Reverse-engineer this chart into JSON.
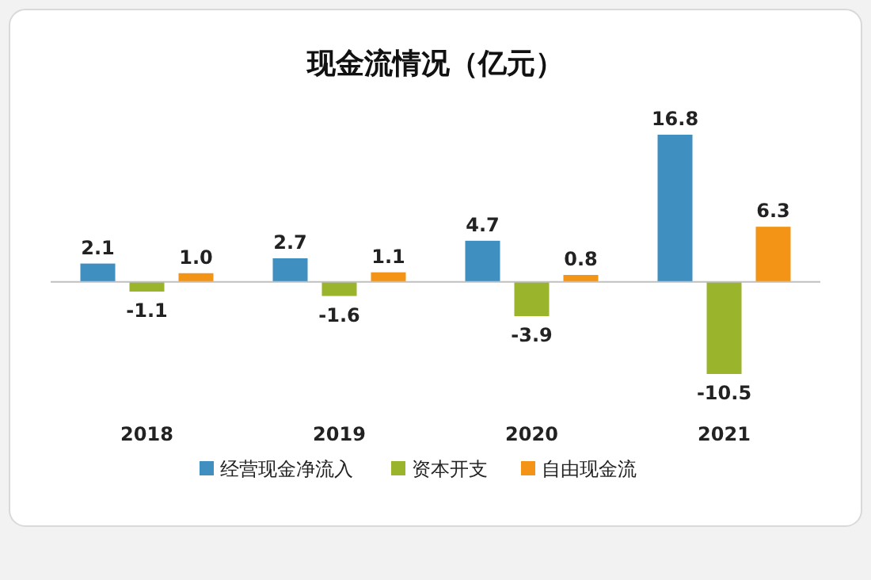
{
  "chart_data": {
    "type": "bar",
    "title": "现金流情况（亿元）",
    "categories": [
      "2018",
      "2019",
      "2020",
      "2021"
    ],
    "series": [
      {
        "name": "经营现金净流入",
        "color": "#3f8fc0",
        "values": [
          2.1,
          2.7,
          4.7,
          16.8
        ],
        "value_labels": [
          "2.1",
          "2.7",
          "4.7",
          "16.8"
        ]
      },
      {
        "name": "资本开支",
        "color": "#9ab42c",
        "values": [
          -1.1,
          -1.6,
          -3.9,
          -10.5
        ],
        "value_labels": [
          "-1.1",
          "-1.6",
          "-3.9",
          "-10.5"
        ]
      },
      {
        "name": "自由现金流",
        "color": "#f39416",
        "values": [
          1.0,
          1.1,
          0.8,
          6.3
        ],
        "value_labels": [
          "1.0",
          "1.1",
          "0.8",
          "6.3"
        ]
      }
    ],
    "legend": "bottom"
  }
}
